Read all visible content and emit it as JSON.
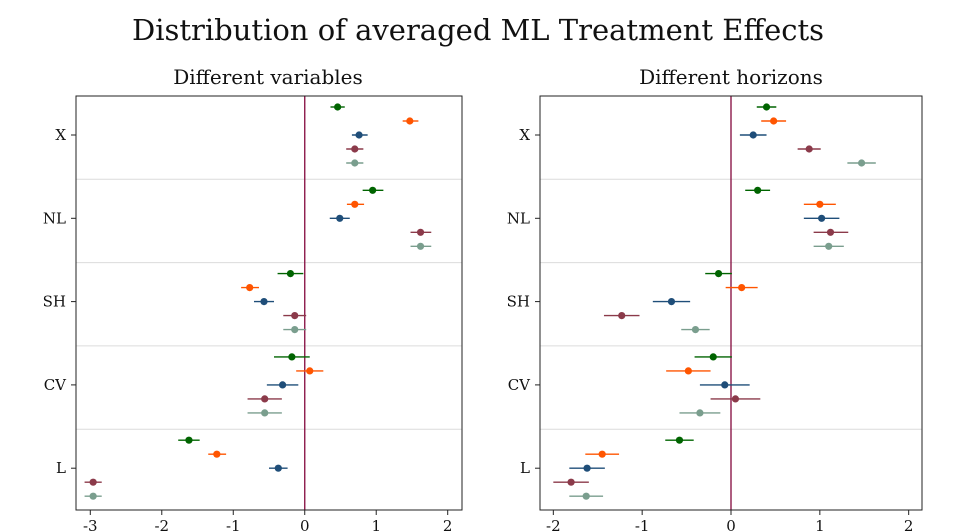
{
  "title": "Distribution of averaged ML Treatment Effects",
  "colors": {
    "background": "#ffffff",
    "zero_line": "#8b1a4a",
    "grid": "#dcdcdc",
    "frame": "#222222"
  },
  "chart_data": [
    {
      "type": "scatter",
      "variant": "coefficient-plot",
      "title": "Different variables",
      "xlim": [
        -3.2,
        2.2
      ],
      "xticks": [
        -3,
        -2,
        -1,
        0,
        1,
        2
      ],
      "groups": [
        "X",
        "NL",
        "SH",
        "CV",
        "L"
      ],
      "series_colors": [
        "#006400",
        "#ff5500",
        "#1f4e79",
        "#8b3a4a",
        "#7a9e8e"
      ],
      "groups_data": [
        {
          "label": "X",
          "points": [
            {
              "value": 0.46,
              "ci": [
                0.36,
                0.56
              ]
            },
            {
              "value": 1.47,
              "ci": [
                1.37,
                1.59
              ]
            },
            {
              "value": 0.76,
              "ci": [
                0.66,
                0.88
              ]
            },
            {
              "value": 0.7,
              "ci": [
                0.58,
                0.82
              ]
            },
            {
              "value": 0.7,
              "ci": [
                0.58,
                0.82
              ]
            }
          ]
        },
        {
          "label": "NL",
          "points": [
            {
              "value": 0.95,
              "ci": [
                0.81,
                1.1
              ]
            },
            {
              "value": 0.7,
              "ci": [
                0.59,
                0.83
              ]
            },
            {
              "value": 0.49,
              "ci": [
                0.35,
                0.63
              ]
            },
            {
              "value": 1.62,
              "ci": [
                1.48,
                1.77
              ]
            },
            {
              "value": 1.62,
              "ci": [
                1.48,
                1.77
              ]
            }
          ]
        },
        {
          "label": "SH",
          "points": [
            {
              "value": -0.2,
              "ci": [
                -0.38,
                -0.02
              ]
            },
            {
              "value": -0.77,
              "ci": [
                -0.89,
                -0.64
              ]
            },
            {
              "value": -0.57,
              "ci": [
                -0.71,
                -0.43
              ]
            },
            {
              "value": -0.14,
              "ci": [
                -0.3,
                0.02
              ]
            },
            {
              "value": -0.14,
              "ci": [
                -0.3,
                0.02
              ]
            }
          ]
        },
        {
          "label": "CV",
          "points": [
            {
              "value": -0.18,
              "ci": [
                -0.43,
                0.07
              ]
            },
            {
              "value": 0.07,
              "ci": [
                -0.12,
                0.26
              ]
            },
            {
              "value": -0.31,
              "ci": [
                -0.53,
                -0.09
              ]
            },
            {
              "value": -0.56,
              "ci": [
                -0.8,
                -0.32
              ]
            },
            {
              "value": -0.56,
              "ci": [
                -0.8,
                -0.32
              ]
            }
          ]
        },
        {
          "label": "L",
          "points": [
            {
              "value": -1.62,
              "ci": [
                -1.77,
                -1.47
              ]
            },
            {
              "value": -1.23,
              "ci": [
                -1.35,
                -1.1
              ]
            },
            {
              "value": -0.37,
              "ci": [
                -0.5,
                -0.24
              ]
            },
            {
              "value": -2.96,
              "ci": [
                -3.08,
                -2.84
              ]
            },
            {
              "value": -2.96,
              "ci": [
                -3.08,
                -2.84
              ]
            }
          ]
        }
      ]
    },
    {
      "type": "scatter",
      "variant": "coefficient-plot",
      "title": "Different horizons",
      "xlim": [
        -2.15,
        2.15
      ],
      "xticks": [
        -2,
        -1,
        0,
        1,
        2
      ],
      "groups": [
        "X",
        "NL",
        "SH",
        "CV",
        "L"
      ],
      "series_colors": [
        "#006400",
        "#ff5500",
        "#1f4e79",
        "#8b3a4a",
        "#7a9e8e"
      ],
      "groups_data": [
        {
          "label": "X",
          "points": [
            {
              "value": 0.4,
              "ci": [
                0.29,
                0.51
              ]
            },
            {
              "value": 0.48,
              "ci": [
                0.34,
                0.62
              ]
            },
            {
              "value": 0.25,
              "ci": [
                0.1,
                0.4
              ]
            },
            {
              "value": 0.88,
              "ci": [
                0.75,
                1.01
              ]
            },
            {
              "value": 1.47,
              "ci": [
                1.31,
                1.63
              ]
            }
          ]
        },
        {
          "label": "NL",
          "points": [
            {
              "value": 0.3,
              "ci": [
                0.16,
                0.44
              ]
            },
            {
              "value": 1.0,
              "ci": [
                0.82,
                1.18
              ]
            },
            {
              "value": 1.02,
              "ci": [
                0.82,
                1.22
              ]
            },
            {
              "value": 1.12,
              "ci": [
                0.93,
                1.32
              ]
            },
            {
              "value": 1.1,
              "ci": [
                0.93,
                1.27
              ]
            }
          ]
        },
        {
          "label": "SH",
          "points": [
            {
              "value": -0.14,
              "ci": [
                -0.29,
                0.01
              ]
            },
            {
              "value": 0.12,
              "ci": [
                -0.06,
                0.3
              ]
            },
            {
              "value": -0.67,
              "ci": [
                -0.88,
                -0.46
              ]
            },
            {
              "value": -1.23,
              "ci": [
                -1.43,
                -1.03
              ]
            },
            {
              "value": -0.4,
              "ci": [
                -0.56,
                -0.24
              ]
            }
          ]
        },
        {
          "label": "CV",
          "points": [
            {
              "value": -0.2,
              "ci": [
                -0.41,
                0.01
              ]
            },
            {
              "value": -0.48,
              "ci": [
                -0.73,
                -0.23
              ]
            },
            {
              "value": -0.07,
              "ci": [
                -0.35,
                0.21
              ]
            },
            {
              "value": 0.05,
              "ci": [
                -0.23,
                0.33
              ]
            },
            {
              "value": -0.35,
              "ci": [
                -0.58,
                -0.12
              ]
            }
          ]
        },
        {
          "label": "L",
          "points": [
            {
              "value": -0.58,
              "ci": [
                -0.74,
                -0.42
              ]
            },
            {
              "value": -1.45,
              "ci": [
                -1.64,
                -1.26
              ]
            },
            {
              "value": -1.62,
              "ci": [
                -1.82,
                -1.42
              ]
            },
            {
              "value": -1.8,
              "ci": [
                -2.0,
                -1.6
              ]
            },
            {
              "value": -1.63,
              "ci": [
                -1.82,
                -1.44
              ]
            }
          ]
        }
      ]
    }
  ]
}
